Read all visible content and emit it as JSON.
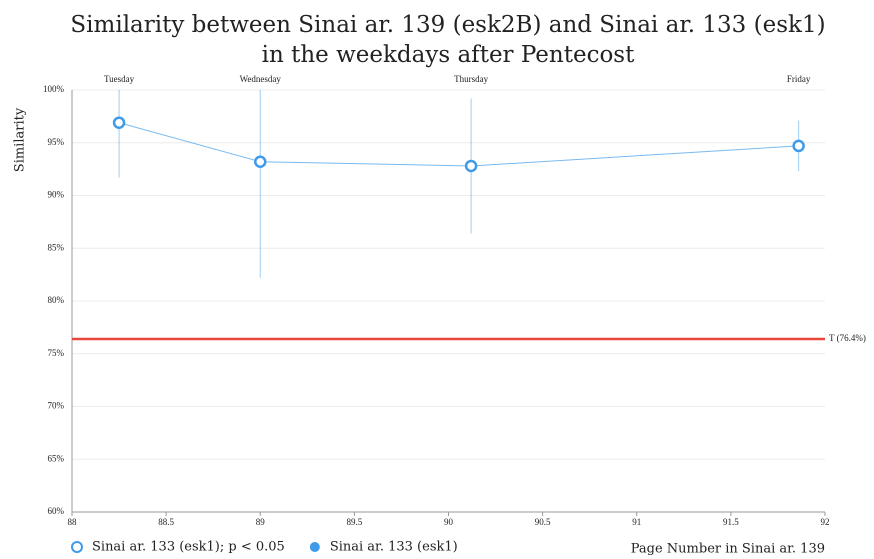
{
  "chart_data": {
    "type": "line",
    "title": [
      "Similarity between Sinai ar. 139 (esk2B) and Sinai ar. 133 (esk1)",
      "in the weekdays after Pentecost"
    ],
    "y_label": "Similarity",
    "x_label": "Page Number in Sinai ar. 139",
    "x": [
      88.25,
      89.0,
      90.12,
      91.86
    ],
    "point_labels": [
      "Tuesday",
      "Wednesday",
      "Thursday",
      "Friday"
    ],
    "series": [
      {
        "name": "Sinai ar. 133 (esk1); p < 0.05",
        "color": "#3d9be9",
        "values": [
          96.9,
          93.2,
          92.8,
          94.7
        ],
        "lower": [
          91.7,
          82.2,
          86.4,
          92.3
        ],
        "upper": [
          100,
          100,
          99.2,
          97.1
        ]
      }
    ],
    "legend": [
      {
        "name": "Sinai ar. 133 (esk1); p < 0.05",
        "marker": "hollow"
      },
      {
        "name": "Sinai ar. 133 (esk1)",
        "marker": "filled"
      }
    ],
    "threshold": {
      "value": 76.4,
      "label": "T (76.4%)",
      "color": "#e8453c"
    },
    "xlim": [
      88,
      92
    ],
    "xticks": [
      88,
      88.5,
      89,
      89.5,
      90,
      90.5,
      91,
      91.5,
      92
    ],
    "ylim": [
      60,
      100
    ],
    "yticks": [
      {
        "value": 60,
        "label": "60%"
      },
      {
        "value": 65,
        "label": "65%"
      },
      {
        "value": 70,
        "label": "70%"
      },
      {
        "value": 75,
        "label": "75%"
      },
      {
        "value": 80,
        "label": "80%"
      },
      {
        "value": 85,
        "label": "85%"
      },
      {
        "value": 90,
        "label": "90%"
      },
      {
        "value": 95,
        "label": "95%"
      },
      {
        "value": 100,
        "label": "100%"
      }
    ],
    "grid": true
  }
}
